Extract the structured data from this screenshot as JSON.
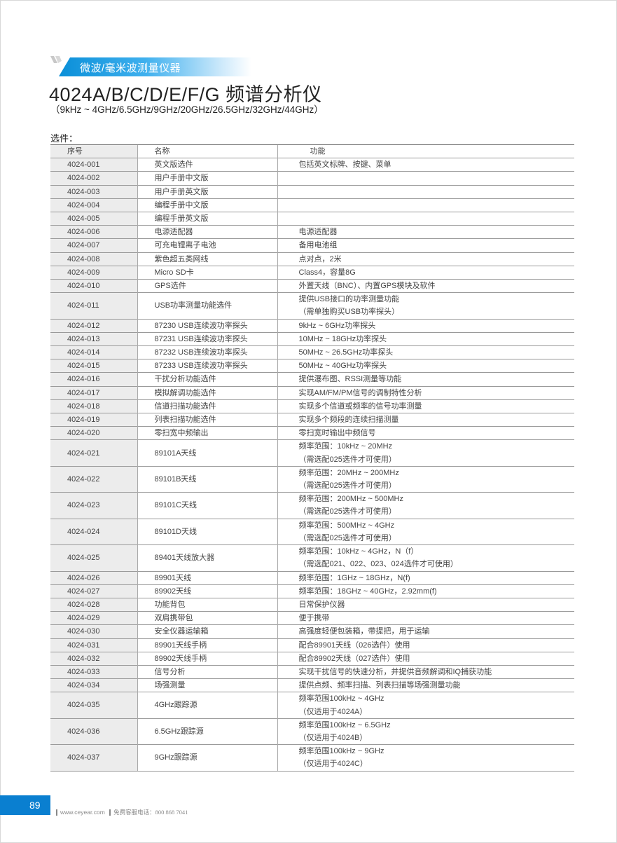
{
  "header": {
    "category": "微波/毫米波测量仪器",
    "title": "4024A/B/C/D/E/F/G 频谱分析仪",
    "subtitle": "（9kHz ~ 4GHz/6.5GHz/9GHz/20GHz/26.5GHz/32GHz/44GHz）",
    "accent_color": "#0a8fd8"
  },
  "section_label": "选件：",
  "table": {
    "columns": [
      "序号",
      "名称",
      "功能"
    ],
    "rows": [
      {
        "id": "4024-001",
        "name": "英文版选件",
        "func": [
          "包括英文标牌、按键、菜单"
        ]
      },
      {
        "id": "4024-002",
        "name": "用户手册中文版",
        "func": []
      },
      {
        "id": "4024-003",
        "name": "用户手册英文版",
        "func": []
      },
      {
        "id": "4024-004",
        "name": "编程手册中文版",
        "func": []
      },
      {
        "id": "4024-005",
        "name": "编程手册英文版",
        "func": []
      },
      {
        "id": "4024-006",
        "name": "电源适配器",
        "func": [
          "电源适配器"
        ]
      },
      {
        "id": "4024-007",
        "name": "可充电锂离子电池",
        "func": [
          "备用电池组"
        ]
      },
      {
        "id": "4024-008",
        "name": "紫色超五类网线",
        "func": [
          "点对点，2米"
        ]
      },
      {
        "id": "4024-009",
        "name": "Micro SD卡",
        "func": [
          "Class4，容量8G"
        ]
      },
      {
        "id": "4024-010",
        "name": "GPS选件",
        "func": [
          "外置天线（BNC）、内置GPS模块及软件"
        ]
      },
      {
        "id": "4024-011",
        "name": "USB功率测量功能选件",
        "func": [
          "提供USB接口的功率测量功能",
          "（需单独购买USB功率探头）"
        ]
      },
      {
        "id": "4024-012",
        "name": "87230 USB连续波功率探头",
        "func": [
          "9kHz ~ 6GHz功率探头"
        ]
      },
      {
        "id": "4024-013",
        "name": "87231 USB连续波功率探头",
        "func": [
          "10MHz ~ 18GHz功率探头"
        ]
      },
      {
        "id": "4024-014",
        "name": "87232 USB连续波功率探头",
        "func": [
          "50MHz ~ 26.5GHz功率探头"
        ]
      },
      {
        "id": "4024-015",
        "name": "87233 USB连续波功率探头",
        "func": [
          "50MHz ~ 40GHz功率探头"
        ]
      },
      {
        "id": "4024-016",
        "name": "干扰分析功能选件",
        "func": [
          "提供瀑布图、RSSI测量等功能"
        ]
      },
      {
        "id": "4024-017",
        "name": "模拟解调功能选件",
        "func": [
          "实现AM/FM/PM信号的调制特性分析"
        ]
      },
      {
        "id": "4024-018",
        "name": "信道扫描功能选件",
        "func": [
          "实现多个信道或频率的信号功率测量"
        ]
      },
      {
        "id": "4024-019",
        "name": "列表扫描功能选件",
        "func": [
          "实现多个频段的连续扫描测量"
        ]
      },
      {
        "id": "4024-020",
        "name": "零扫宽中频输出",
        "func": [
          "零扫宽时输出中频信号"
        ]
      },
      {
        "id": "4024-021",
        "name": "89101A天线",
        "func": [
          "频率范围：10kHz ~ 20MHz",
          "（需选配025选件才可使用）"
        ]
      },
      {
        "id": "4024-022",
        "name": "89101B天线",
        "func": [
          "频率范围：20MHz ~ 200MHz",
          "（需选配025选件才可使用）"
        ]
      },
      {
        "id": "4024-023",
        "name": "89101C天线",
        "func": [
          "频率范围：200MHz ~ 500MHz",
          "（需选配025选件才可使用）"
        ]
      },
      {
        "id": "4024-024",
        "name": "89101D天线",
        "func": [
          "频率范围：500MHz ~ 4GHz",
          "（需选配025选件才可使用）"
        ]
      },
      {
        "id": "4024-025",
        "name": "89401天线放大器",
        "func": [
          "频率范围：10kHz ~ 4GHz，N（f）",
          "（需选配021、022、023、024选件才可使用）"
        ]
      },
      {
        "id": "4024-026",
        "name": "89901天线",
        "func": [
          "频率范围：1GHz ~ 18GHz，N(f)"
        ]
      },
      {
        "id": "4024-027",
        "name": "89902天线",
        "func": [
          "频率范围：18GHz ~ 40GHz，2.92mm(f)"
        ]
      },
      {
        "id": "4024-028",
        "name": "功能背包",
        "func": [
          "日常保护仪器"
        ]
      },
      {
        "id": "4024-029",
        "name": "双肩携带包",
        "func": [
          "便于携带"
        ]
      },
      {
        "id": "4024-030",
        "name": "安全仪器运输箱",
        "func": [
          "高强度轻便包装箱，带提把，用于运输"
        ]
      },
      {
        "id": "4024-031",
        "name": "89901天线手柄",
        "func": [
          "配合89901天线（026选件）使用"
        ]
      },
      {
        "id": "4024-032",
        "name": "89902天线手柄",
        "func": [
          "配合89902天线（027选件）使用"
        ]
      },
      {
        "id": "4024-033",
        "name": "信号分析",
        "func": [
          "实现干扰信号的快速分析，并提供音频解调和IQ捕获功能"
        ]
      },
      {
        "id": "4024-034",
        "name": "场强测量",
        "func": [
          "提供点频、频率扫描、列表扫描等场强测量功能"
        ]
      },
      {
        "id": "4024-035",
        "name": "4GHz跟踪源",
        "func": [
          "频率范围100kHz ~ 4GHz",
          "（仅适用于4024A）"
        ]
      },
      {
        "id": "4024-036",
        "name": "6.5GHz跟踪源",
        "func": [
          "频率范围100kHz ~ 6.5GHz",
          "（仅适用于4024B）"
        ]
      },
      {
        "id": "4024-037",
        "name": "9GHz跟踪源",
        "func": [
          "频率范围100kHz ~ 9GHz",
          "（仅适用于4024C）"
        ]
      }
    ]
  },
  "footer": {
    "page_number": "89",
    "website": "www.ceyear.com",
    "hotline_label": "免费客服电话：",
    "hotline_number": "800 868 7041"
  }
}
